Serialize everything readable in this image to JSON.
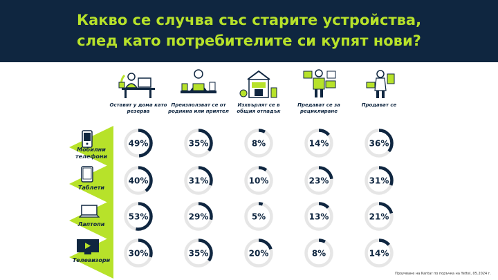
{
  "title_line1": "Какво се случва със старите устройства,",
  "title_line2": "след като потребителите си купят нови?",
  "footnote": "Проучване на Kantar по поръчка на Yettel, 05.2024 г.",
  "colors": {
    "navy": "#0f2640",
    "lime": "#b7e22a",
    "ring_bg": "#e6e6e6"
  },
  "chart_data": {
    "type": "donut-grid",
    "columns": [
      {
        "label": "Оставят у дома като резерва",
        "icon": "person-at-desk-icon"
      },
      {
        "label": "Преизползват се от роднина или приятел",
        "icon": "person-with-laptop-icon"
      },
      {
        "label": "Изхвърлят се в общия отпадък",
        "icon": "trash-bin-icon"
      },
      {
        "label": "Предават се за рециклиране",
        "icon": "recycling-box-icon"
      },
      {
        "label": "Продават се",
        "icon": "selling-devices-icon"
      }
    ],
    "rows": [
      {
        "label": "Мобилни телефони",
        "icon": "mobile-phone-icon",
        "values": [
          49,
          35,
          8,
          14,
          36
        ]
      },
      {
        "label": "Таблети",
        "icon": "tablet-icon",
        "values": [
          40,
          31,
          10,
          23,
          31
        ]
      },
      {
        "label": "Лаптопи",
        "icon": "laptop-icon",
        "values": [
          53,
          29,
          5,
          13,
          21
        ]
      },
      {
        "label": "Телевизори",
        "icon": "tv-icon",
        "values": [
          30,
          35,
          20,
          8,
          14
        ]
      }
    ],
    "unit": "%"
  }
}
